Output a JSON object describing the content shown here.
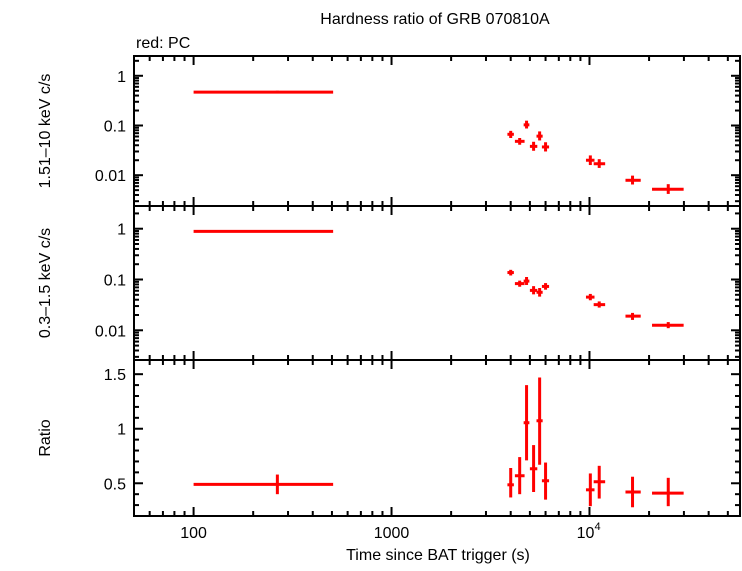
{
  "chart_data": {
    "type": "scatter",
    "title": "Hardness ratio of GRB 070810A",
    "subtitle": "red: PC",
    "xlabel": "Time since BAT trigger (s)",
    "xscale": "log",
    "xlim": [
      50,
      57600
    ],
    "xticks": [
      {
        "v": 100,
        "label": "100"
      },
      {
        "v": 1000,
        "label": "1000"
      },
      {
        "v": 10000,
        "label": "10",
        "exp": "4"
      }
    ],
    "color": "#ff0000",
    "x": [
      265,
      4000,
      4440,
      4810,
      5220,
      5600,
      6000,
      10100,
      11200,
      16500,
      25000
    ],
    "xerr": [
      [
        100,
        507
      ],
      [
        3850,
        4150
      ],
      [
        4200,
        4700
      ],
      [
        4650,
        4970
      ],
      [
        5000,
        5450
      ],
      [
        5400,
        5800
      ],
      [
        5750,
        6250
      ],
      [
        9600,
        10600
      ],
      [
        10500,
        12000
      ],
      [
        15200,
        18150
      ],
      [
        20700,
        29900
      ]
    ],
    "panels": [
      {
        "ylabel": "1.51–10 keV c/s",
        "yscale": "log",
        "ylim": [
          0.0024,
          2.5
        ],
        "yticks": [
          {
            "v": 1,
            "label": "1"
          },
          {
            "v": 0.1,
            "label": "0.1"
          },
          {
            "v": 0.01,
            "label": "0.01"
          }
        ],
        "y": [
          0.47,
          0.0665,
          0.048,
          0.103,
          0.038,
          0.061,
          0.037,
          0.02,
          0.017,
          0.0079,
          0.0052
        ],
        "yerr": [
          [
            0.44,
            0.5
          ],
          [
            0.056,
            0.078
          ],
          [
            0.041,
            0.056
          ],
          [
            0.087,
            0.125
          ],
          [
            0.031,
            0.047
          ],
          [
            0.05,
            0.076
          ],
          [
            0.03,
            0.046
          ],
          [
            0.016,
            0.025
          ],
          [
            0.014,
            0.021
          ],
          [
            0.0065,
            0.0098
          ],
          [
            0.0042,
            0.0066
          ]
        ]
      },
      {
        "ylabel": "0.3–1.5 keV c/s",
        "yscale": "log",
        "ylim": [
          0.0026,
          2.8
        ],
        "yticks": [
          {
            "v": 1,
            "label": "1"
          },
          {
            "v": 0.1,
            "label": "0.1"
          },
          {
            "v": 0.01,
            "label": "0.01"
          }
        ],
        "y": [
          0.885,
          0.137,
          0.083,
          0.093,
          0.061,
          0.056,
          0.073,
          0.045,
          0.032,
          0.019,
          0.0126
        ],
        "yerr": [
          [
            0.85,
            0.92
          ],
          [
            0.12,
            0.155
          ],
          [
            0.072,
            0.095
          ],
          [
            0.078,
            0.112
          ],
          [
            0.051,
            0.074
          ],
          [
            0.046,
            0.068
          ],
          [
            0.063,
            0.085
          ],
          [
            0.039,
            0.052
          ],
          [
            0.028,
            0.037
          ],
          [
            0.016,
            0.022
          ],
          [
            0.011,
            0.0145
          ]
        ]
      },
      {
        "ylabel": "Ratio",
        "yscale": "linear",
        "ylim": [
          0.2,
          1.63
        ],
        "yticks": [
          {
            "v": 0.5,
            "label": "0.5"
          },
          {
            "v": 1,
            "label": "1"
          },
          {
            "v": 1.5,
            "label": "1.5"
          }
        ],
        "y": [
          0.49,
          0.486,
          0.569,
          1.055,
          0.633,
          1.073,
          0.523,
          0.44,
          0.514,
          0.42,
          0.41
        ],
        "yerr": [
          [
            0.4,
            0.58
          ],
          [
            0.37,
            0.64
          ],
          [
            0.4,
            0.74
          ],
          [
            0.71,
            1.4
          ],
          [
            0.42,
            0.85
          ],
          [
            0.67,
            1.47
          ],
          [
            0.35,
            0.69
          ],
          [
            0.29,
            0.59
          ],
          [
            0.36,
            0.66
          ],
          [
            0.28,
            0.56
          ],
          [
            0.29,
            0.55
          ]
        ]
      }
    ]
  }
}
